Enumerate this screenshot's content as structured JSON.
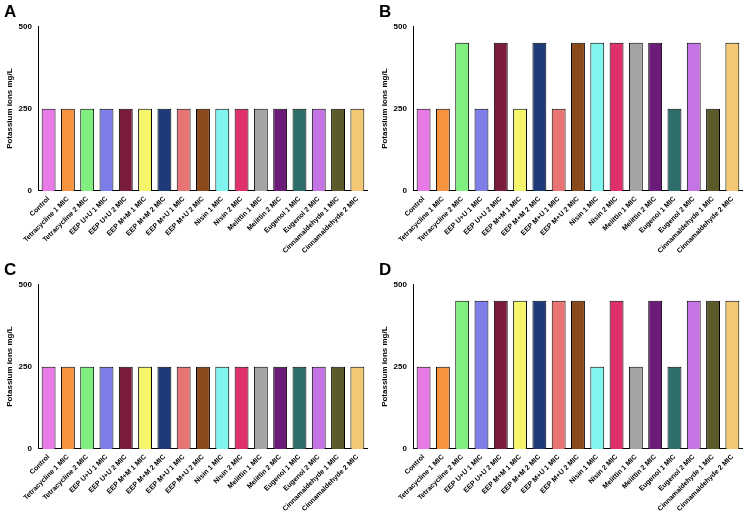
{
  "chart_data": [
    {
      "type": "bar",
      "title": "A",
      "y_label": "Potassium ions mg/L",
      "categories": [
        "Control",
        "Tetracycline 1 MIC",
        "Tetracycline 2 MIC",
        "EEP U+U 1 MIC",
        "EEP U+U 2 MIC",
        "EEP M+M 1 MIC",
        "EEP M+M 2 MIC",
        "EEP M+U 1 MIC",
        "EEP M+U 2 MIC",
        "Nisin 1 MIC",
        "Nisin 2 MIC",
        "Melittin 1 MIC",
        "Melittin 2 MIC",
        "Eugenol 1 MIC",
        "Eugenol 2 MIC",
        "Cinnamaldehyde 1 MIC",
        "Cinnamaldehyde 2 MIC"
      ],
      "values": [
        250,
        250,
        250,
        250,
        250,
        250,
        250,
        250,
        250,
        250,
        250,
        250,
        250,
        250,
        250,
        250,
        250
      ],
      "colors": [
        "#e87ae8",
        "#f7923e",
        "#7ff07f",
        "#7e7ee8",
        "#7a1c3c",
        "#f5f56c",
        "#1f3a78",
        "#e87474",
        "#8a4a1a",
        "#80f5f0",
        "#e0306c",
        "#a4a4a4",
        "#6a1c78",
        "#2e6e6a",
        "#c474e4",
        "#5c5a2a",
        "#f2c874"
      ],
      "ylim": [
        0,
        500
      ],
      "yticks": [
        0,
        250,
        500
      ],
      "grid": false
    },
    {
      "type": "bar",
      "title": "B",
      "y_label": "Potassium ions mg/L",
      "categories": [
        "Control",
        "Tetracycline 1 MIC",
        "Tetracycline 2 MIC",
        "EEP U+U 1 MIC",
        "EEP U+U 2 MIC",
        "EEP M+M 1 MIC",
        "EEP M+M 2 MIC",
        "EEP M+U 1 MIC",
        "EEP M+U 2 MIC",
        "Nisin 1 MIC",
        "Nisin 2 MIC",
        "Melittin 1 MIC",
        "Melittin 2 MIC",
        "Eugenol 1 MIC",
        "Eugenol 2 MIC",
        "Cinnamaldehyde 1 MIC",
        "Cinnamaldehyde 2 MIC"
      ],
      "values": [
        250,
        250,
        450,
        250,
        450,
        250,
        450,
        250,
        450,
        450,
        450,
        450,
        450,
        250,
        450,
        250,
        450
      ],
      "colors": [
        "#e87ae8",
        "#f7923e",
        "#7ff07f",
        "#7e7ee8",
        "#7a1c3c",
        "#f5f56c",
        "#1f3a78",
        "#e87474",
        "#8a4a1a",
        "#80f5f0",
        "#e0306c",
        "#a4a4a4",
        "#6a1c78",
        "#2e6e6a",
        "#c474e4",
        "#5c5a2a",
        "#f2c874"
      ],
      "ylim": [
        0,
        500
      ],
      "yticks": [
        0,
        250,
        500
      ],
      "grid": false
    },
    {
      "type": "bar",
      "title": "C",
      "y_label": "Potassium ions mg/L",
      "categories": [
        "Control",
        "Tetracycline 1 MIC",
        "Tetracycline 2 MIC",
        "EEP U+U 1 MIC",
        "EEP U+U 2 MIC",
        "EEP M+M 1 MIC",
        "EEP M+M 2 MIC",
        "EEP M+U 1 MIC",
        "EEP M+U 2 MIC",
        "Nisin 1 MIC",
        "Nisin 2 MIC",
        "Melittin 1 MIC",
        "Melittin 2 MIC",
        "Eugenol 1 MIC",
        "Eugenol 2 MIC",
        "Cinnamaldehyde 1 MIC",
        "Cinnamaldehyde 2 MIC"
      ],
      "values": [
        250,
        250,
        250,
        250,
        250,
        250,
        250,
        250,
        250,
        250,
        250,
        250,
        250,
        250,
        250,
        250,
        250
      ],
      "colors": [
        "#e87ae8",
        "#f7923e",
        "#7ff07f",
        "#7e7ee8",
        "#7a1c3c",
        "#f5f56c",
        "#1f3a78",
        "#e87474",
        "#8a4a1a",
        "#80f5f0",
        "#e0306c",
        "#a4a4a4",
        "#6a1c78",
        "#2e6e6a",
        "#c474e4",
        "#5c5a2a",
        "#f2c874"
      ],
      "ylim": [
        0,
        500
      ],
      "yticks": [
        0,
        250,
        500
      ],
      "grid": false
    },
    {
      "type": "bar",
      "title": "D",
      "y_label": "Potassium ions mg/L",
      "categories": [
        "Control",
        "Tetracycline 1 MIC",
        "Tetracycline 2 MIC",
        "EEP U+U 1 MIC",
        "EEP U+U 2 MIC",
        "EEP M+M 1 MIC",
        "EEP M+M 2 MIC",
        "EEP M+U 1 MIC",
        "EEP M+U 2 MIC",
        "Nisin 1 MIC",
        "Nisin 2 MIC",
        "Melittin 1 MIC",
        "Melittin 2 MIC",
        "Eugenol 1 MIC",
        "Eugenol 2 MIC",
        "Cinnamaldehyde 1 MIC",
        "Cinnamaldehyde 2 MIC"
      ],
      "values": [
        250,
        250,
        450,
        450,
        450,
        450,
        450,
        450,
        450,
        250,
        450,
        250,
        450,
        250,
        450,
        450,
        450
      ],
      "colors": [
        "#e87ae8",
        "#f7923e",
        "#7ff07f",
        "#7e7ee8",
        "#7a1c3c",
        "#f5f56c",
        "#1f3a78",
        "#e87474",
        "#8a4a1a",
        "#80f5f0",
        "#e0306c",
        "#a4a4a4",
        "#6a1c78",
        "#2e6e6a",
        "#c474e4",
        "#5c5a2a",
        "#f2c874"
      ],
      "ylim": [
        0,
        500
      ],
      "yticks": [
        0,
        250,
        500
      ],
      "grid": false
    }
  ]
}
